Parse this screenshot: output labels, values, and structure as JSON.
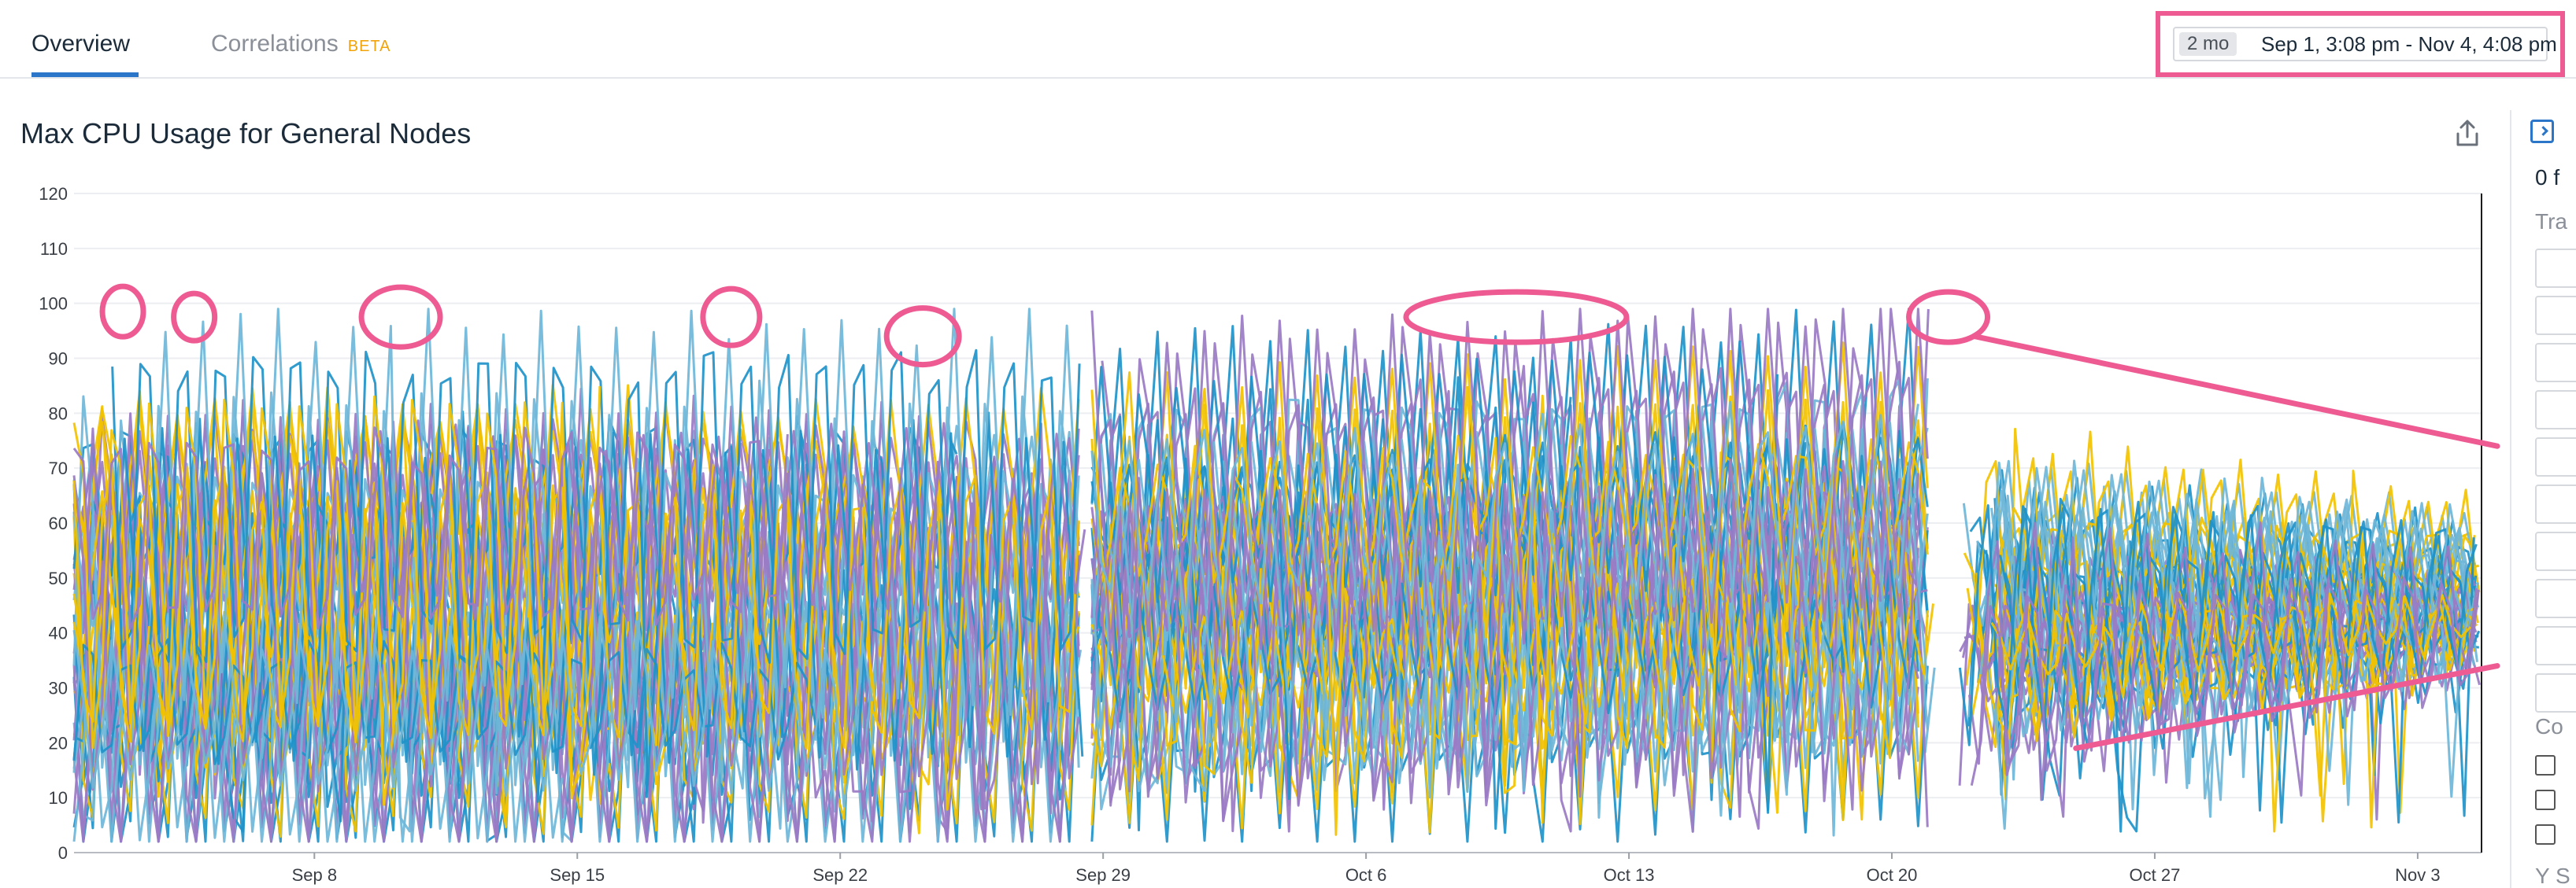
{
  "tabs": [
    {
      "label": "Overview"
    },
    {
      "label": "Correlations",
      "badge": "BETA"
    }
  ],
  "timepicker": {
    "badge": "2 mo",
    "range": "Sep 1, 3:08 pm - Nov 4, 4:08 pm"
  },
  "side_panel": {
    "count_text": "0 f",
    "label_1": "Tra",
    "label_2": "Co",
    "label_3": "Y S"
  },
  "colors": {
    "series_blue": "#1f93c9",
    "series_light_blue": "#6fb6d8",
    "series_yellow": "#f2c200",
    "series_purple": "#9a7bc4",
    "annotation_pink": "#ee5b93",
    "accent": "#2b76c9"
  },
  "chart_data": {
    "type": "line",
    "title": "Max CPU Usage for General Nodes",
    "xlabel": "",
    "ylabel": "",
    "ylim": [
      0,
      120
    ],
    "yticks": [
      0,
      10,
      20,
      30,
      40,
      50,
      60,
      70,
      80,
      90,
      100,
      110,
      120
    ],
    "xlim": [
      "Sep 4, 3:08 pm",
      "Nov 4, 4:08 pm"
    ],
    "xticks": [
      {
        "label": "Sep 8",
        "day": 7
      },
      {
        "label": "Sep 15",
        "day": 14
      },
      {
        "label": "Sep 22",
        "day": 21
      },
      {
        "label": "Sep 29",
        "day": 28
      },
      {
        "label": "Oct 6",
        "day": 35
      },
      {
        "label": "Oct 13",
        "day": 42
      },
      {
        "label": "Oct 20",
        "day": 49
      },
      {
        "label": "Oct 27",
        "day": 56
      },
      {
        "label": "Nov 3",
        "day": 63
      }
    ],
    "grid": true,
    "legend": "none",
    "series_count": 60,
    "summary_ranges": [
      {
        "period": "Sep 1 - Sep 28",
        "min": 5,
        "max": 98
      },
      {
        "period": "Sep 28 - Oct 22",
        "min": 3,
        "max": 99
      },
      {
        "period": "Oct 22 - Nov 4",
        "min": 3,
        "max": 85
      }
    ],
    "annotations": {
      "peaks": [
        {
          "date": "Sep 2",
          "value": 97
        },
        {
          "date": "Sep 4",
          "value": 96
        },
        {
          "date": "Sep 9",
          "value": 97
        },
        {
          "date": "Sep 18",
          "value": 98
        },
        {
          "date": "Sep 23",
          "value": 94
        },
        {
          "date": "Oct 8 - Oct 12",
          "value": 98
        },
        {
          "date": "Oct 21",
          "value": 99
        }
      ],
      "trend_upper": [
        {
          "date": "Oct 21",
          "value": 94
        },
        {
          "date": "Nov 4",
          "value": 74
        }
      ],
      "trend_lower": [
        {
          "date": "Oct 24",
          "value": 19
        },
        {
          "date": "Nov 4",
          "value": 34
        }
      ]
    }
  }
}
